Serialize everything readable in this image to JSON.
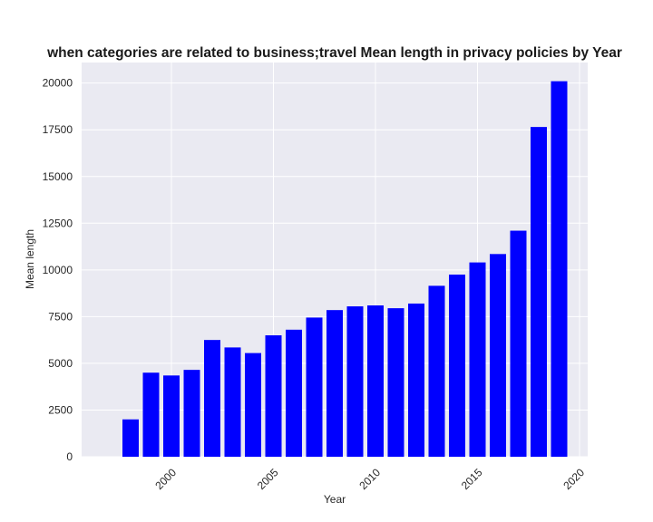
{
  "chart_data": {
    "type": "bar",
    "title": "when categories are related to business;travel Mean length in privacy policies by Year",
    "xlabel": "Year",
    "ylabel": "Mean length",
    "x": [
      1998,
      1999,
      2000,
      2001,
      2002,
      2003,
      2004,
      2005,
      2006,
      2007,
      2008,
      2009,
      2010,
      2011,
      2012,
      2013,
      2014,
      2015,
      2016,
      2017,
      2018,
      2019
    ],
    "values": [
      2000,
      4500,
      4350,
      4650,
      6250,
      5850,
      5550,
      6500,
      6800,
      7450,
      7850,
      8050,
      8100,
      7950,
      8200,
      9150,
      9750,
      10400,
      10850,
      12100,
      17650,
      20100
    ],
    "xlim": [
      1995.6,
      2020.4
    ],
    "ylim": [
      0,
      21100
    ],
    "xticks": [
      "2000",
      "2005",
      "2010",
      "2015",
      "2020"
    ],
    "yticks": [
      "0",
      "2500",
      "5000",
      "7500",
      "10000",
      "12500",
      "15000",
      "17500",
      "20000"
    ],
    "bar_color": "#0000ff",
    "background_color": "#eaeaf2",
    "grid_color": "#ffffff",
    "grid": true,
    "xtick_rotation": "45"
  }
}
